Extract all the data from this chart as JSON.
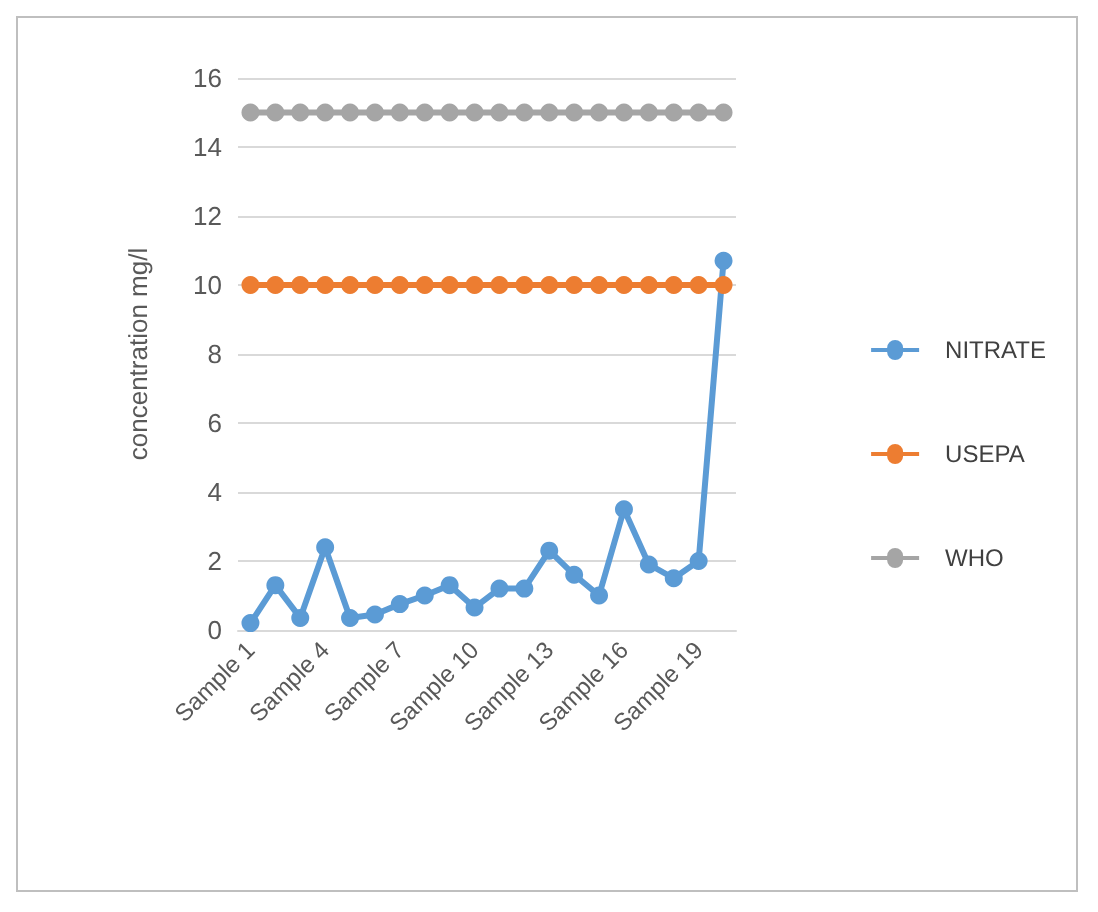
{
  "chart_data": {
    "type": "line",
    "ylabel": "concentration mg/l",
    "categories": [
      "Sample 1",
      null,
      null,
      "Sample 4",
      null,
      null,
      "Sample 7",
      null,
      null,
      "Sample 10",
      null,
      null,
      "Sample 13",
      null,
      null,
      "Sample 16",
      null,
      null,
      "Sample 19",
      null
    ],
    "series": [
      {
        "name": "NITRATE",
        "color": "#5b9bd5",
        "values": [
          0.2,
          1.3,
          0.35,
          2.4,
          0.35,
          0.45,
          0.75,
          1.0,
          1.3,
          0.65,
          1.2,
          1.2,
          2.3,
          1.6,
          1.0,
          3.5,
          1.9,
          1.5,
          2.0,
          10.7
        ]
      },
      {
        "name": "USEPA",
        "color": "#ed7d31",
        "values": [
          10,
          10,
          10,
          10,
          10,
          10,
          10,
          10,
          10,
          10,
          10,
          10,
          10,
          10,
          10,
          10,
          10,
          10,
          10,
          10
        ]
      },
      {
        "name": "WHO",
        "color": "#a5a5a5",
        "values": [
          15,
          15,
          15,
          15,
          15,
          15,
          15,
          15,
          15,
          15,
          15,
          15,
          15,
          15,
          15,
          15,
          15,
          15,
          15,
          15
        ]
      }
    ],
    "ylim": [
      0,
      16
    ],
    "yticks": [
      0,
      2,
      4,
      6,
      8,
      10,
      12,
      14,
      16
    ],
    "grid": "y",
    "legend": "right",
    "marker": "circle"
  }
}
